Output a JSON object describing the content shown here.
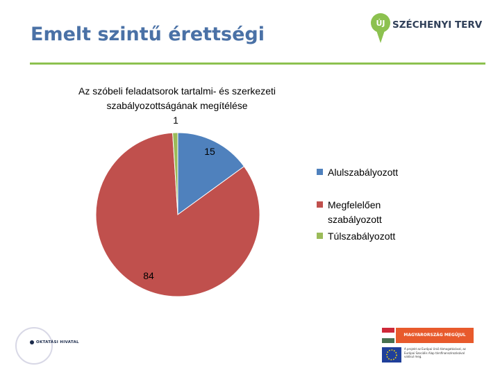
{
  "header": {
    "title": "Emelt szintű érettségi",
    "logo_text": "SZÉCHENYI TERV",
    "logo_badge": "ÚJ"
  },
  "chart_data": {
    "type": "pie",
    "title": "Az szóbeli feladatsorok tartalmi- és szerkezeti szabályozottságának megítélése",
    "categories": [
      "Alulszabályozott",
      "Megfelelően szabályozott",
      "Túlszabályozott"
    ],
    "values": [
      15,
      84,
      1
    ],
    "data_labels": [
      "15",
      "84",
      "1"
    ],
    "colors": [
      "#4f81bd",
      "#c0504d",
      "#9bbb59"
    ],
    "legend_position": "right"
  },
  "footer": {
    "left_logo_text": "OKTATÁSI HIVATAL",
    "right_banner_text": "MAGYARORSZÁG MEGÚJUL",
    "right_eu_text": "A projekt az Európai Unió támogatásával, az Európai Szociális Alap társfinanszírozásával valósul meg."
  }
}
